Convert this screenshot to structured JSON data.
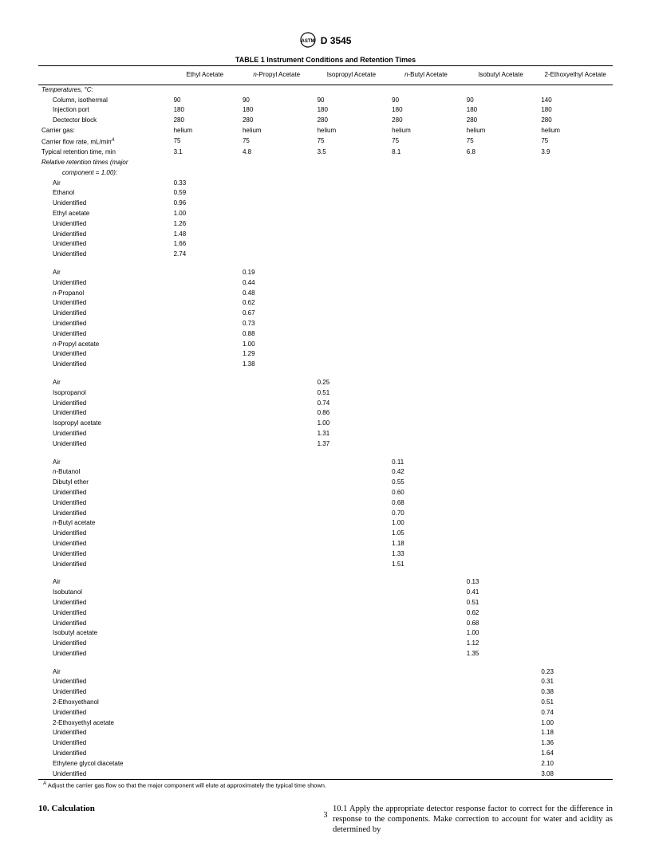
{
  "doc_number": "D 3545",
  "table_title": "TABLE 1  Instrument Conditions and Retention Times",
  "columns": [
    "",
    "Ethyl Acetate",
    "n-Propyl Acetate",
    "Isopropyl Acetate",
    "n-Butyl Acetate",
    "Isobutyl Acetate",
    "2-Ethoxyethyl Acetate"
  ],
  "italic_n_cols": [
    2,
    4
  ],
  "top_section": {
    "group_label": "Temperatures, °C:",
    "rows": [
      {
        "label": "Column, isothermal",
        "vals": [
          "90",
          "90",
          "90",
          "90",
          "90",
          "140"
        ]
      },
      {
        "label": "Injection port",
        "vals": [
          "180",
          "180",
          "180",
          "180",
          "180",
          "180"
        ]
      },
      {
        "label": "Dectector block",
        "vals": [
          "280",
          "280",
          "280",
          "280",
          "280",
          "280"
        ]
      }
    ],
    "extra_rows": [
      {
        "label": "Carrier gas:",
        "vals": [
          "helium",
          "helium",
          "helium",
          "helium",
          "helium",
          "helium"
        ],
        "indent": 0
      },
      {
        "label_html": "Carrier flow rate, mL/min<span class=\"sup\">A</span>",
        "vals": [
          "75",
          "75",
          "75",
          "75",
          "75",
          "75"
        ],
        "indent": 0
      },
      {
        "label": "Typical retention time, min",
        "vals": [
          "3.1",
          "4.8",
          "3.5",
          "8.1",
          "6.8",
          "3.9"
        ],
        "indent": 0
      }
    ],
    "rel_label_1": "Relative retention times (major",
    "rel_label_2": "component = 1.00):"
  },
  "groups": [
    {
      "col": 1,
      "rows": [
        {
          "l": "Air",
          "v": "0.33"
        },
        {
          "l": "Ethanol",
          "v": "0.59"
        },
        {
          "l": "Unidentified",
          "v": "0.96"
        },
        {
          "l": "Ethyl acetate",
          "v": "1.00"
        },
        {
          "l": "Unidentified",
          "v": "1.26"
        },
        {
          "l": "Unidentified",
          "v": "1.48"
        },
        {
          "l": "Unidentified",
          "v": "1.66"
        },
        {
          "l": "Unidentified",
          "v": "2.74"
        }
      ]
    },
    {
      "col": 2,
      "rows": [
        {
          "l": "Air",
          "v": "0.19"
        },
        {
          "l": "Unidentified",
          "v": "0.44"
        },
        {
          "l_html": "<span class=\"n-italic\">n</span>-Propanol",
          "v": "0.48"
        },
        {
          "l": "Unidentified",
          "v": "0.62"
        },
        {
          "l": "Unidentified",
          "v": "0.67"
        },
        {
          "l": "Unidentified",
          "v": "0.73"
        },
        {
          "l": "Unidentified",
          "v": "0.88"
        },
        {
          "l_html": "<span class=\"n-italic\">n</span>-Propyl acetate",
          "v": "1.00"
        },
        {
          "l": "Unidentified",
          "v": "1.29"
        },
        {
          "l": "Unidentified",
          "v": "1.38"
        }
      ]
    },
    {
      "col": 3,
      "rows": [
        {
          "l": "Air",
          "v": "0.25"
        },
        {
          "l": "Isopropanol",
          "v": "0.51"
        },
        {
          "l": "Unidentified",
          "v": "0.74"
        },
        {
          "l": "Unidentified",
          "v": "0.86"
        },
        {
          "l": "Isopropyl acetate",
          "v": "1.00"
        },
        {
          "l": "Unidentified",
          "v": "1.31"
        },
        {
          "l": "Unidentified",
          "v": "1.37"
        }
      ]
    },
    {
      "col": 4,
      "rows": [
        {
          "l": "Air",
          "v": "0.11"
        },
        {
          "l_html": "<span class=\"n-italic\">n</span>-Butanol",
          "v": "0.42"
        },
        {
          "l": "Dibutyl ether",
          "v": "0.55"
        },
        {
          "l": "Unidentified",
          "v": "0.60"
        },
        {
          "l": "Unidentified",
          "v": "0.68"
        },
        {
          "l": "Unidentified",
          "v": "0.70"
        },
        {
          "l_html": "<span class=\"n-italic\">n</span>-Butyl acetate",
          "v": "1.00"
        },
        {
          "l": "Unidentified",
          "v": "1.05"
        },
        {
          "l": "Unidentified",
          "v": "1.18"
        },
        {
          "l": "Unidentified",
          "v": "1.33"
        },
        {
          "l": "Unidentified",
          "v": "1.51"
        }
      ]
    },
    {
      "col": 5,
      "rows": [
        {
          "l": "Air",
          "v": "0.13"
        },
        {
          "l": "Isobutanol",
          "v": "0.41"
        },
        {
          "l": "Unidentified",
          "v": "0.51"
        },
        {
          "l": "Unidentified",
          "v": "0.62"
        },
        {
          "l": "Unidentified",
          "v": "0.68"
        },
        {
          "l": "Isobutyl acetate",
          "v": "1.00"
        },
        {
          "l": "Unidentified",
          "v": "1.12"
        },
        {
          "l": "Unidentified",
          "v": "1.35"
        }
      ]
    },
    {
      "col": 6,
      "rows": [
        {
          "l": "Air",
          "v": "0.23"
        },
        {
          "l": "Unidentified",
          "v": "0.31"
        },
        {
          "l": "Unidentified",
          "v": "0.38"
        },
        {
          "l": "2-Ethoxyethanol",
          "v": "0.51"
        },
        {
          "l": "Unidentified",
          "v": "0.74"
        },
        {
          "l": "2-Ethoxyethyl acetate",
          "v": "1.00"
        },
        {
          "l": "Unidentified",
          "v": "1.18"
        },
        {
          "l": "Unidentified",
          "v": "1.36"
        },
        {
          "l": "Unidentified",
          "v": "1.64"
        },
        {
          "l": "Ethylene glycol diacetate",
          "v": "2.10"
        },
        {
          "l": "Unidentified",
          "v": "3.08"
        }
      ]
    }
  ],
  "footnote": "Adjust the carrier gas flow so that the major component will elute at approximately the typical time shown.",
  "footnote_sup": "A",
  "section_head": "10. Calculation",
  "body_para": "10.1 Apply the appropriate detector response factor to correct for the difference in response to the components. Make correction to account for water and acidity as determined by",
  "page_number": "3"
}
